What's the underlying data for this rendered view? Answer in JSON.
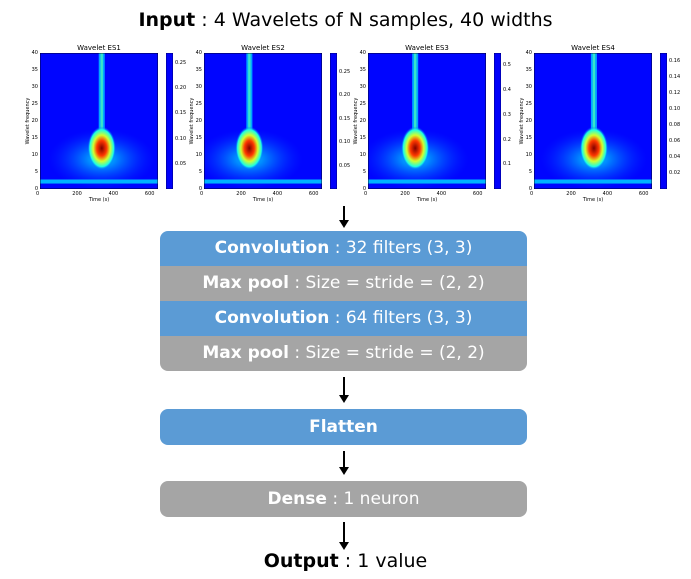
{
  "input": {
    "label": "Input",
    "text": " : 4 Wavelets of N samples, 40 widths"
  },
  "wavelets": [
    {
      "title": "Wavelet ES1",
      "xlabel": "Time (s)",
      "ylabel": "Wavelet frequency",
      "x_ticks": [
        "0",
        "200",
        "400",
        "600"
      ],
      "y_ticks": [
        "0",
        "5",
        "10",
        "15",
        "20",
        "25",
        "30",
        "35",
        "40"
      ],
      "cbar_ticks": [
        "0.25",
        "0.20",
        "0.15",
        "0.10",
        "0.05"
      ],
      "cbar_max": 0.27,
      "peak_time": 340,
      "colormap": "rainbow"
    },
    {
      "title": "Wavelet ES2",
      "xlabel": "Time (s)",
      "ylabel": "Wavelet frequency",
      "x_ticks": [
        "0",
        "200",
        "400",
        "600"
      ],
      "y_ticks": [
        "0",
        "5",
        "10",
        "15",
        "20",
        "25",
        "30",
        "35",
        "40"
      ],
      "cbar_ticks": [
        "0.25",
        "0.20",
        "0.15",
        "0.10",
        "0.05"
      ],
      "cbar_max": 0.29,
      "peak_time": 250,
      "colormap": "rainbow"
    },
    {
      "title": "Wavelet ES3",
      "xlabel": "Time (s)",
      "ylabel": "Wavelet frequency",
      "x_ticks": [
        "0",
        "200",
        "400",
        "600"
      ],
      "y_ticks": [
        "0",
        "5",
        "10",
        "15",
        "20",
        "25",
        "30",
        "35",
        "40"
      ],
      "cbar_ticks": [
        "0.5",
        "0.4",
        "0.3",
        "0.2",
        "0.1"
      ],
      "cbar_max": 0.55,
      "peak_time": 260,
      "colormap": "rainbow"
    },
    {
      "title": "Wavelet ES4",
      "xlabel": "Time (s)",
      "ylabel": "Wavelet frequency",
      "x_ticks": [
        "0",
        "200",
        "400",
        "600"
      ],
      "y_ticks": [
        "0",
        "5",
        "10",
        "15",
        "20",
        "25",
        "30",
        "35",
        "40"
      ],
      "cbar_ticks": [
        "0.16",
        "0.14",
        "0.12",
        "0.10",
        "0.08",
        "0.06",
        "0.04",
        "0.02"
      ],
      "cbar_max": 0.17,
      "peak_time": 330,
      "colormap": "rainbow"
    }
  ],
  "layers": [
    {
      "name": "Convolution",
      "detail": " : 32 filters (3, 3)",
      "color": "#5b9bd5"
    },
    {
      "name": "Max pool",
      "detail": " : Size = stride = (2, 2)",
      "color": "#a5a5a5"
    },
    {
      "name": "Convolution",
      "detail": " : 64 filters (3, 3)",
      "color": "#5b9bd5"
    },
    {
      "name": "Max pool",
      "detail": " : Size = stride = (2, 2)",
      "color": "#a5a5a5"
    }
  ],
  "flatten": {
    "name": "Flatten",
    "color": "#5b9bd5"
  },
  "dense": {
    "name": "Dense",
    "detail": " : 1 neuron",
    "color": "#a5a5a5"
  },
  "output": {
    "label": "Output",
    "text": " : 1 value"
  }
}
